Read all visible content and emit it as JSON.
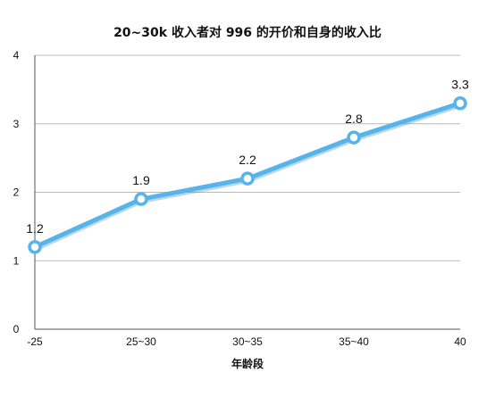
{
  "chart_data": {
    "type": "line",
    "title": "20~30k 收入者对 996 的开价和自身的收入比",
    "xlabel": "年龄段",
    "ylabel": "",
    "categories": [
      "-25",
      "25~30",
      "30~35",
      "35~40",
      "40"
    ],
    "series": [
      {
        "values": [
          1.2,
          1.9,
          2.2,
          2.8,
          3.3
        ],
        "data_labels": [
          "1.2",
          "1.9",
          "2.2",
          "2.8",
          "3.3"
        ]
      }
    ],
    "ylim": [
      0,
      4
    ],
    "yticks": [
      "0",
      "1",
      "2",
      "3",
      "4"
    ],
    "grid": "horizontal",
    "colors": {
      "line": "#57b4ea",
      "marker_fill": "#ffffff",
      "grid": "#b9b9b9",
      "axis": "#555555"
    }
  }
}
